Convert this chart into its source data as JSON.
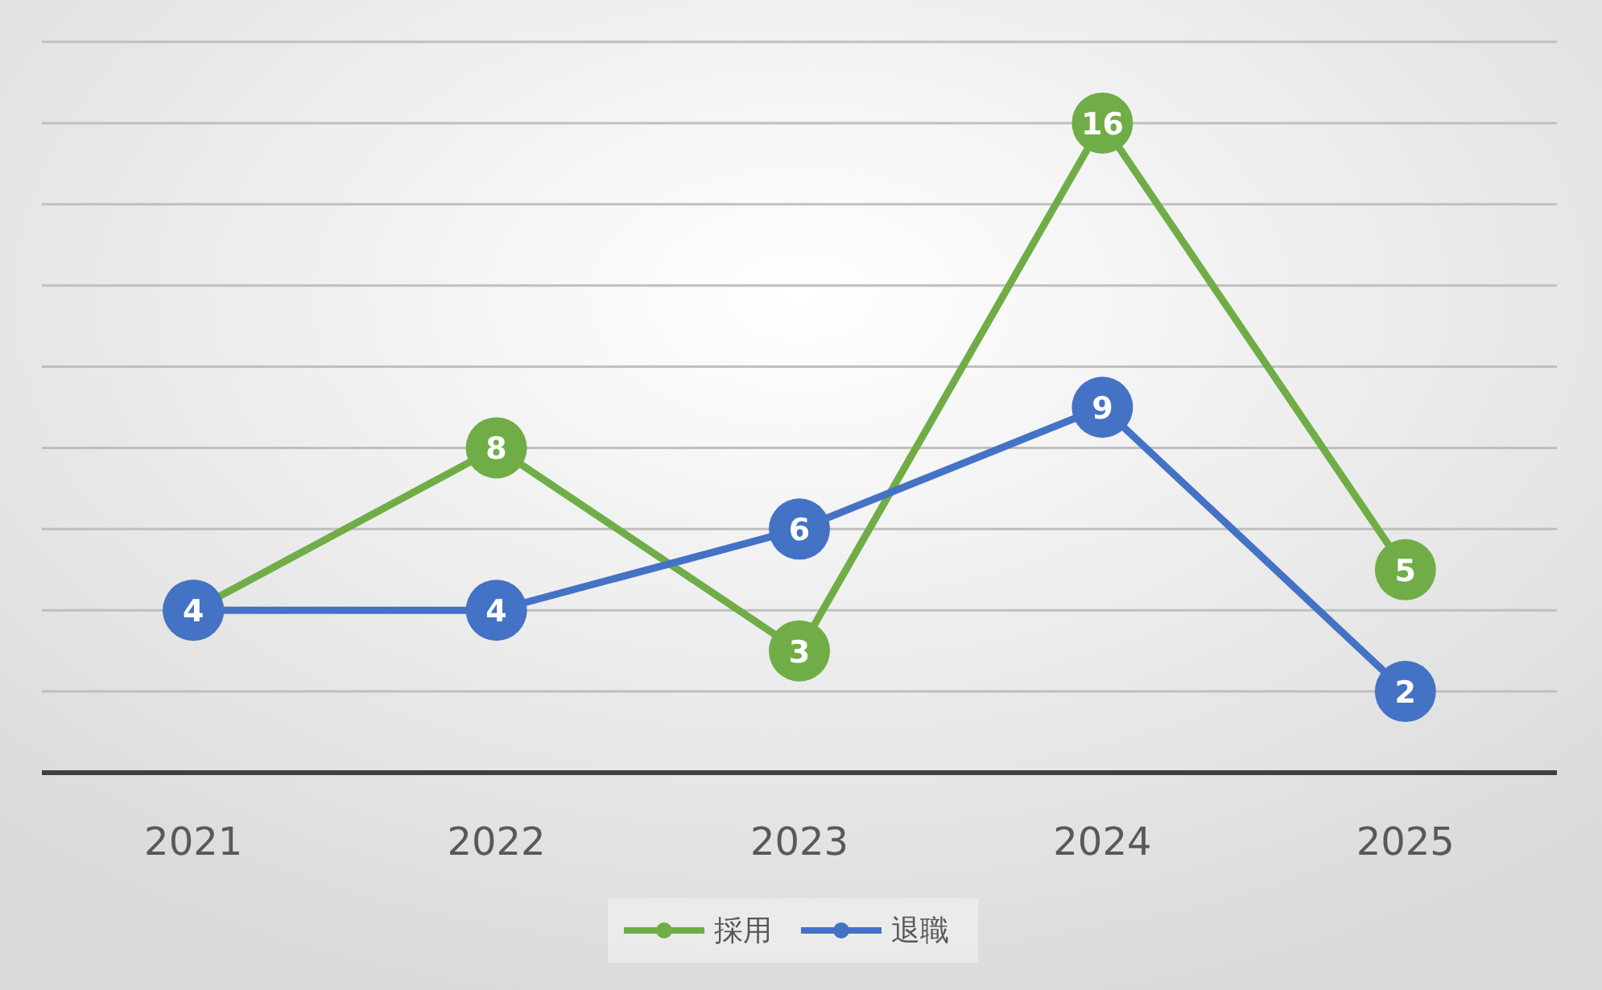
{
  "chart_data": {
    "type": "line",
    "categories": [
      "2021",
      "2022",
      "2023",
      "2024",
      "2025"
    ],
    "series": [
      {
        "name": "採用",
        "color": "#70ad47",
        "values": [
          4,
          8,
          3,
          16,
          5
        ],
        "value_labels": [
          null,
          "8",
          "3",
          "16",
          "5"
        ]
      },
      {
        "name": "退職",
        "color": "#4472c4",
        "values": [
          4,
          4,
          6,
          9,
          2
        ],
        "value_labels": [
          "4",
          "4",
          "6",
          "9",
          "2"
        ]
      }
    ],
    "ylim": [
      0,
      18
    ],
    "yticks": [
      {
        "value": 0,
        "label": null
      },
      {
        "value": 2,
        "label": null
      },
      {
        "value": 4,
        "label": null
      },
      {
        "value": 6,
        "label": null
      },
      {
        "value": 8,
        "label": null
      },
      {
        "value": 10,
        "label": null
      },
      {
        "value": 12,
        "label": null
      },
      {
        "value": 14,
        "label": null
      },
      {
        "value": 16,
        "label": null
      },
      {
        "value": 18,
        "label": null
      }
    ],
    "tick_labels": "x",
    "grid": "y",
    "legend": "bottom",
    "marker": "circle",
    "line_style": "solid"
  }
}
